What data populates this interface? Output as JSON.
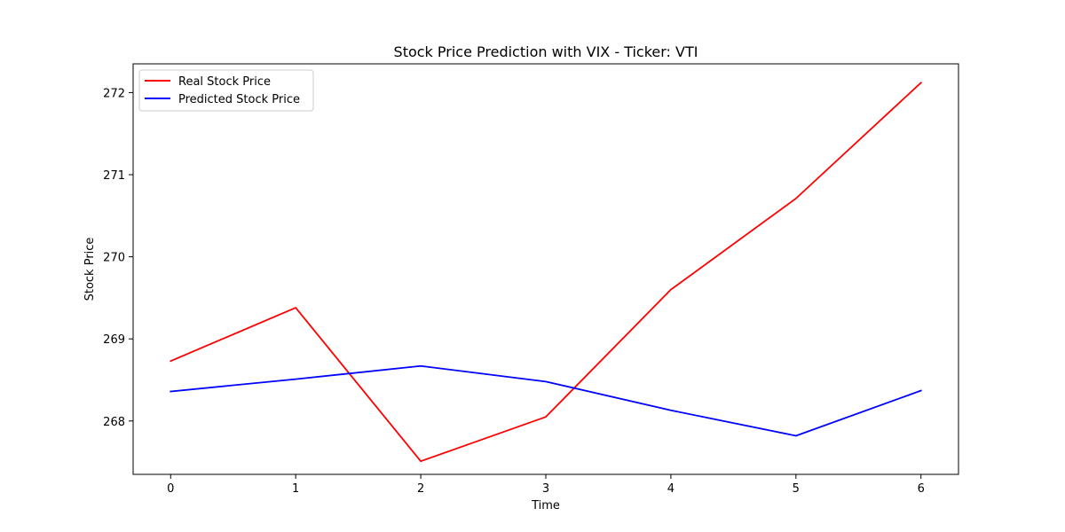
{
  "chart_data": {
    "type": "line",
    "title": "Stock Price Prediction with VIX - Ticker: VTI",
    "xlabel": "Time",
    "ylabel": "Stock Price",
    "x": [
      0,
      1,
      2,
      3,
      4,
      5,
      6
    ],
    "xlim": [
      -0.3,
      6.3
    ],
    "ylim": [
      267.35,
      272.35
    ],
    "xticks": [
      0,
      1,
      2,
      3,
      4,
      5,
      6
    ],
    "yticks": [
      268,
      269,
      270,
      271,
      272
    ],
    "grid": false,
    "legend_position": "top-left",
    "series": [
      {
        "name": "Real Stock Price",
        "color": "#ff0000",
        "values": [
          268.73,
          269.38,
          267.51,
          268.05,
          269.6,
          270.71,
          272.12
        ]
      },
      {
        "name": "Predicted Stock Price",
        "color": "#0000ff",
        "values": [
          268.36,
          268.51,
          268.67,
          268.48,
          268.13,
          267.82,
          268.37
        ]
      }
    ]
  }
}
